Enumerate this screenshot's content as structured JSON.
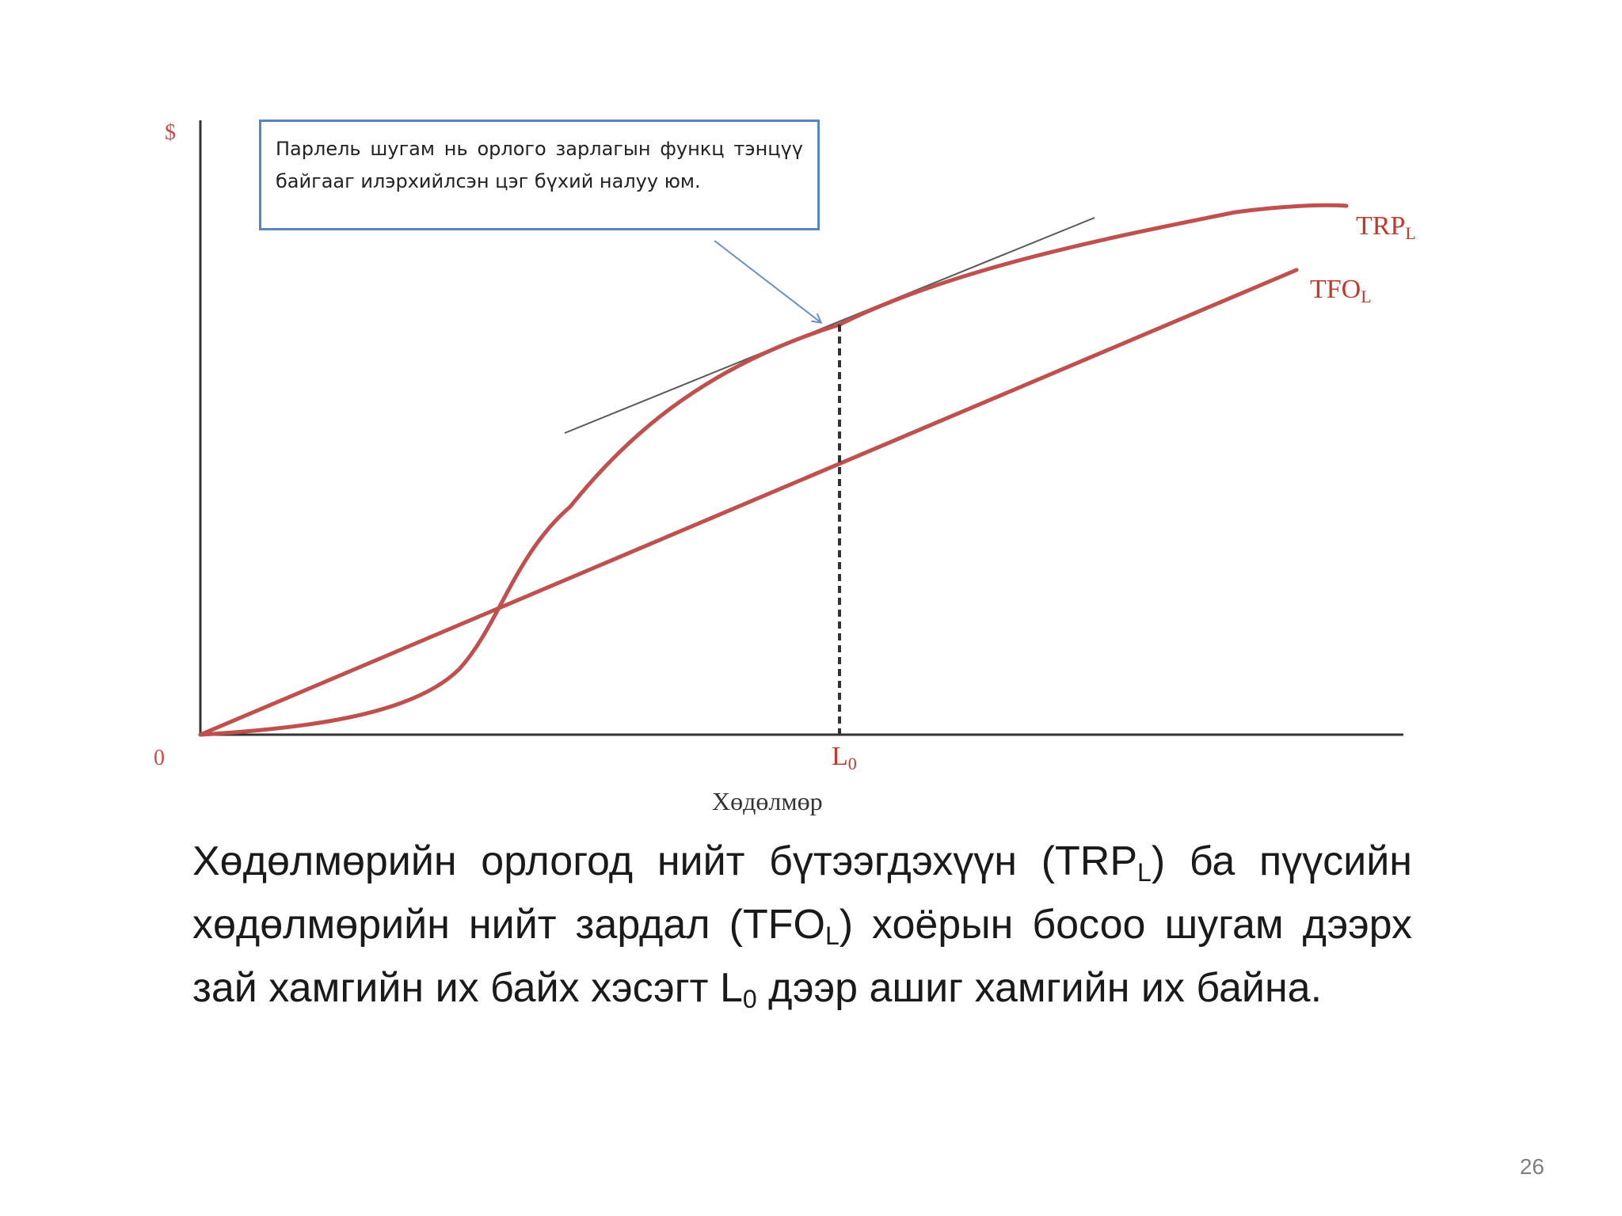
{
  "diagram": {
    "y_axis_label": "$",
    "origin_label": "0",
    "x_axis_label": "Хөдөлмөр",
    "trp_label": {
      "main": "TRP",
      "sub": "L"
    },
    "tfo_label": {
      "main": "TFO",
      "sub": "L"
    },
    "l0_label": {
      "main": "L",
      "sub": "0"
    },
    "callout": "Парлель шугам нь орлого зарлагын функц тэнцүү байгааг илэрхийлсэн цэг бүхий налуу юм.",
    "colors": {
      "curve": "#c0504d",
      "axis": "#333333",
      "tangent": "#595959",
      "arrow": "#6a8fc8",
      "callout_border": "#5b84c4"
    }
  },
  "caption": {
    "part1": "Хөдөлмөрийн орлогод нийт бүтээгдэхүүн (TRP",
    "sub1": "L",
    "part2": ") ба пүүсийн хөдөлмөрийн нийт зардал (TFO",
    "sub2": "L",
    "part3": ") хоёрын босоо шугам дээрх зай хамгийн их байх хэсэгт L",
    "sub3": "0",
    "part4": " дээр ашиг хамгийн их байна."
  },
  "page_number": "26"
}
